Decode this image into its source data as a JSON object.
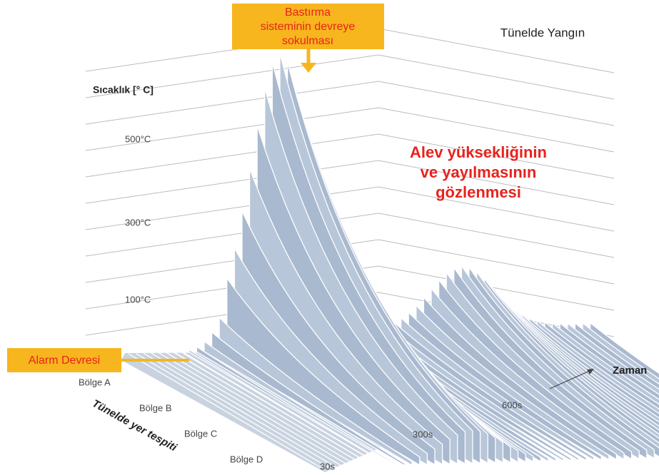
{
  "title": "Tünelde Yangın",
  "y_axis": {
    "label": "Sıcaklık [° C]",
    "ticks": [
      "500°C",
      "300°C",
      "100°C"
    ]
  },
  "zone_axis": {
    "label": "Tünelde yer tespiti",
    "ticks": [
      "Bölge A",
      "Bölge B",
      "Bölge C",
      "Bölge D"
    ]
  },
  "time_axis": {
    "label": "Zaman",
    "ticks": [
      "30s",
      "300s",
      "600s"
    ]
  },
  "annotations": {
    "suppression": [
      "Bastırma",
      "sisteminin devreye",
      "sokulması"
    ],
    "alarm": "Alarm Devresi",
    "observation": [
      "Alev yüksekliğinin",
      "ve yayılmasının",
      "gözlenmesi"
    ]
  }
}
